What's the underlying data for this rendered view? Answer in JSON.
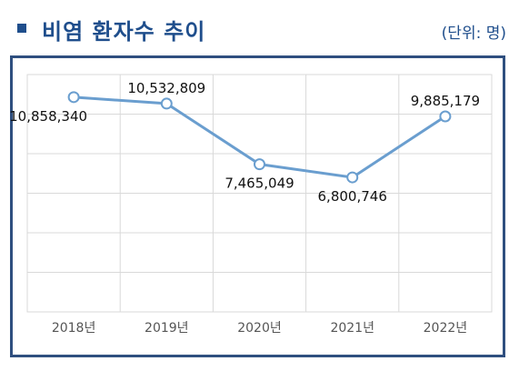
{
  "header": {
    "title": "비염 환자수 추이",
    "unit": "(단위: 명)"
  },
  "chart_data": {
    "type": "line",
    "categories": [
      "2018년",
      "2019년",
      "2020년",
      "2021년",
      "2022년"
    ],
    "series": [
      {
        "values": [
          10858340,
          10532809,
          7465049,
          6800746,
          9885179
        ]
      }
    ],
    "data_labels": [
      "10,858,340",
      "10,532,809",
      "7,465,049",
      "6,800,746",
      "9,885,179"
    ],
    "ylim": [
      0,
      12000000
    ],
    "grid": true,
    "legend": "none",
    "colors": {
      "line": "#6a9ecf",
      "marker_fill": "#ffffff",
      "grid": "#d9d9d9",
      "frame": "#2f4f7f"
    }
  }
}
